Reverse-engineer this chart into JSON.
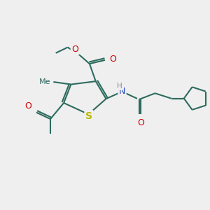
{
  "bg_color": "#efefef",
  "bond_color": "#2d6b5e",
  "S_color": "#b8b800",
  "N_color": "#2244bb",
  "O_color": "#cc0000",
  "H_color": "#888888",
  "lw": 1.5,
  "fs": 9,
  "figsize": [
    3.0,
    3.0
  ],
  "dpi": 100,
  "xlim": [
    0,
    10
  ],
  "ylim": [
    0,
    10
  ]
}
